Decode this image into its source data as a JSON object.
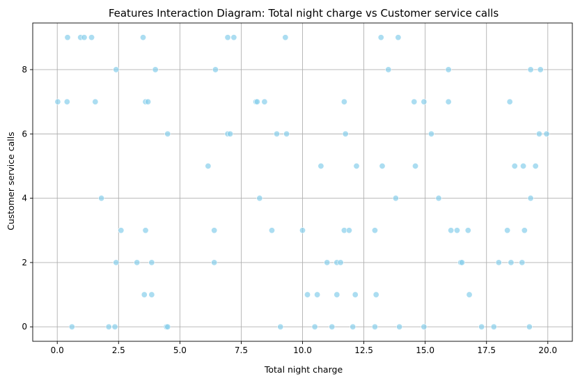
{
  "chart_data": {
    "type": "scatter",
    "title": "Features Interaction Diagram: Total night charge vs Customer service calls",
    "xlabel": "Total night charge",
    "ylabel": "Customer service calls",
    "xlim": [
      -1.0,
      21.0
    ],
    "ylim": [
      -0.45,
      9.45
    ],
    "xticks": [
      0.0,
      2.5,
      5.0,
      7.5,
      10.0,
      12.5,
      15.0,
      17.5,
      20.0
    ],
    "xtick_labels": [
      "0.0",
      "2.5",
      "5.0",
      "7.5",
      "10.0",
      "12.5",
      "15.0",
      "17.5",
      "20.0"
    ],
    "yticks": [
      0,
      2,
      4,
      6,
      8
    ],
    "ytick_labels": [
      "0",
      "2",
      "4",
      "6",
      "8"
    ],
    "grid": true,
    "marker_color": "#87CEEB",
    "points": [
      {
        "x": 0.42,
        "y": 9
      },
      {
        "x": 0.95,
        "y": 9
      },
      {
        "x": 1.1,
        "y": 9
      },
      {
        "x": 1.4,
        "y": 9
      },
      {
        "x": 3.5,
        "y": 9
      },
      {
        "x": 6.95,
        "y": 9
      },
      {
        "x": 7.2,
        "y": 9
      },
      {
        "x": 9.3,
        "y": 9
      },
      {
        "x": 13.2,
        "y": 9
      },
      {
        "x": 13.9,
        "y": 9
      },
      {
        "x": 2.4,
        "y": 8
      },
      {
        "x": 4.0,
        "y": 8
      },
      {
        "x": 6.45,
        "y": 8
      },
      {
        "x": 13.5,
        "y": 8
      },
      {
        "x": 15.95,
        "y": 8
      },
      {
        "x": 19.3,
        "y": 8
      },
      {
        "x": 19.7,
        "y": 8
      },
      {
        "x": 0.02,
        "y": 7
      },
      {
        "x": 0.4,
        "y": 7
      },
      {
        "x": 1.55,
        "y": 7
      },
      {
        "x": 3.6,
        "y": 7
      },
      {
        "x": 3.7,
        "y": 7
      },
      {
        "x": 8.1,
        "y": 7
      },
      {
        "x": 8.15,
        "y": 7
      },
      {
        "x": 8.45,
        "y": 7
      },
      {
        "x": 11.7,
        "y": 7
      },
      {
        "x": 14.55,
        "y": 7
      },
      {
        "x": 14.95,
        "y": 7
      },
      {
        "x": 15.95,
        "y": 7
      },
      {
        "x": 18.45,
        "y": 7
      },
      {
        "x": 4.5,
        "y": 6
      },
      {
        "x": 6.95,
        "y": 6
      },
      {
        "x": 7.05,
        "y": 6
      },
      {
        "x": 8.95,
        "y": 6
      },
      {
        "x": 9.35,
        "y": 6
      },
      {
        "x": 11.75,
        "y": 6
      },
      {
        "x": 15.25,
        "y": 6
      },
      {
        "x": 19.65,
        "y": 6
      },
      {
        "x": 19.95,
        "y": 6
      },
      {
        "x": 6.15,
        "y": 5
      },
      {
        "x": 10.75,
        "y": 5
      },
      {
        "x": 12.2,
        "y": 5
      },
      {
        "x": 13.25,
        "y": 5
      },
      {
        "x": 14.6,
        "y": 5
      },
      {
        "x": 18.65,
        "y": 5
      },
      {
        "x": 19.0,
        "y": 5
      },
      {
        "x": 19.5,
        "y": 5
      },
      {
        "x": 1.8,
        "y": 4
      },
      {
        "x": 8.25,
        "y": 4
      },
      {
        "x": 13.8,
        "y": 4
      },
      {
        "x": 15.55,
        "y": 4
      },
      {
        "x": 19.3,
        "y": 4
      },
      {
        "x": 2.6,
        "y": 3
      },
      {
        "x": 3.6,
        "y": 3
      },
      {
        "x": 6.4,
        "y": 3
      },
      {
        "x": 8.75,
        "y": 3
      },
      {
        "x": 10.0,
        "y": 3
      },
      {
        "x": 11.7,
        "y": 3
      },
      {
        "x": 11.9,
        "y": 3
      },
      {
        "x": 12.95,
        "y": 3
      },
      {
        "x": 16.05,
        "y": 3
      },
      {
        "x": 16.3,
        "y": 3
      },
      {
        "x": 16.75,
        "y": 3
      },
      {
        "x": 18.35,
        "y": 3
      },
      {
        "x": 19.05,
        "y": 3
      },
      {
        "x": 2.4,
        "y": 2
      },
      {
        "x": 3.25,
        "y": 2
      },
      {
        "x": 3.85,
        "y": 2
      },
      {
        "x": 6.4,
        "y": 2
      },
      {
        "x": 11.0,
        "y": 2
      },
      {
        "x": 11.4,
        "y": 2
      },
      {
        "x": 11.55,
        "y": 2
      },
      {
        "x": 16.45,
        "y": 2
      },
      {
        "x": 16.5,
        "y": 2
      },
      {
        "x": 18.0,
        "y": 2
      },
      {
        "x": 18.5,
        "y": 2
      },
      {
        "x": 18.95,
        "y": 2
      },
      {
        "x": 3.55,
        "y": 1
      },
      {
        "x": 3.85,
        "y": 1
      },
      {
        "x": 10.2,
        "y": 1
      },
      {
        "x": 10.6,
        "y": 1
      },
      {
        "x": 11.4,
        "y": 1
      },
      {
        "x": 12.15,
        "y": 1
      },
      {
        "x": 13.0,
        "y": 1
      },
      {
        "x": 16.8,
        "y": 1
      },
      {
        "x": 0.6,
        "y": 0
      },
      {
        "x": 2.1,
        "y": 0
      },
      {
        "x": 2.35,
        "y": 0
      },
      {
        "x": 4.45,
        "y": 0
      },
      {
        "x": 4.5,
        "y": 0
      },
      {
        "x": 9.1,
        "y": 0
      },
      {
        "x": 10.5,
        "y": 0
      },
      {
        "x": 11.2,
        "y": 0
      },
      {
        "x": 12.05,
        "y": 0
      },
      {
        "x": 12.95,
        "y": 0
      },
      {
        "x": 13.95,
        "y": 0
      },
      {
        "x": 14.95,
        "y": 0
      },
      {
        "x": 17.3,
        "y": 0
      },
      {
        "x": 17.8,
        "y": 0
      },
      {
        "x": 19.25,
        "y": 0
      }
    ]
  }
}
